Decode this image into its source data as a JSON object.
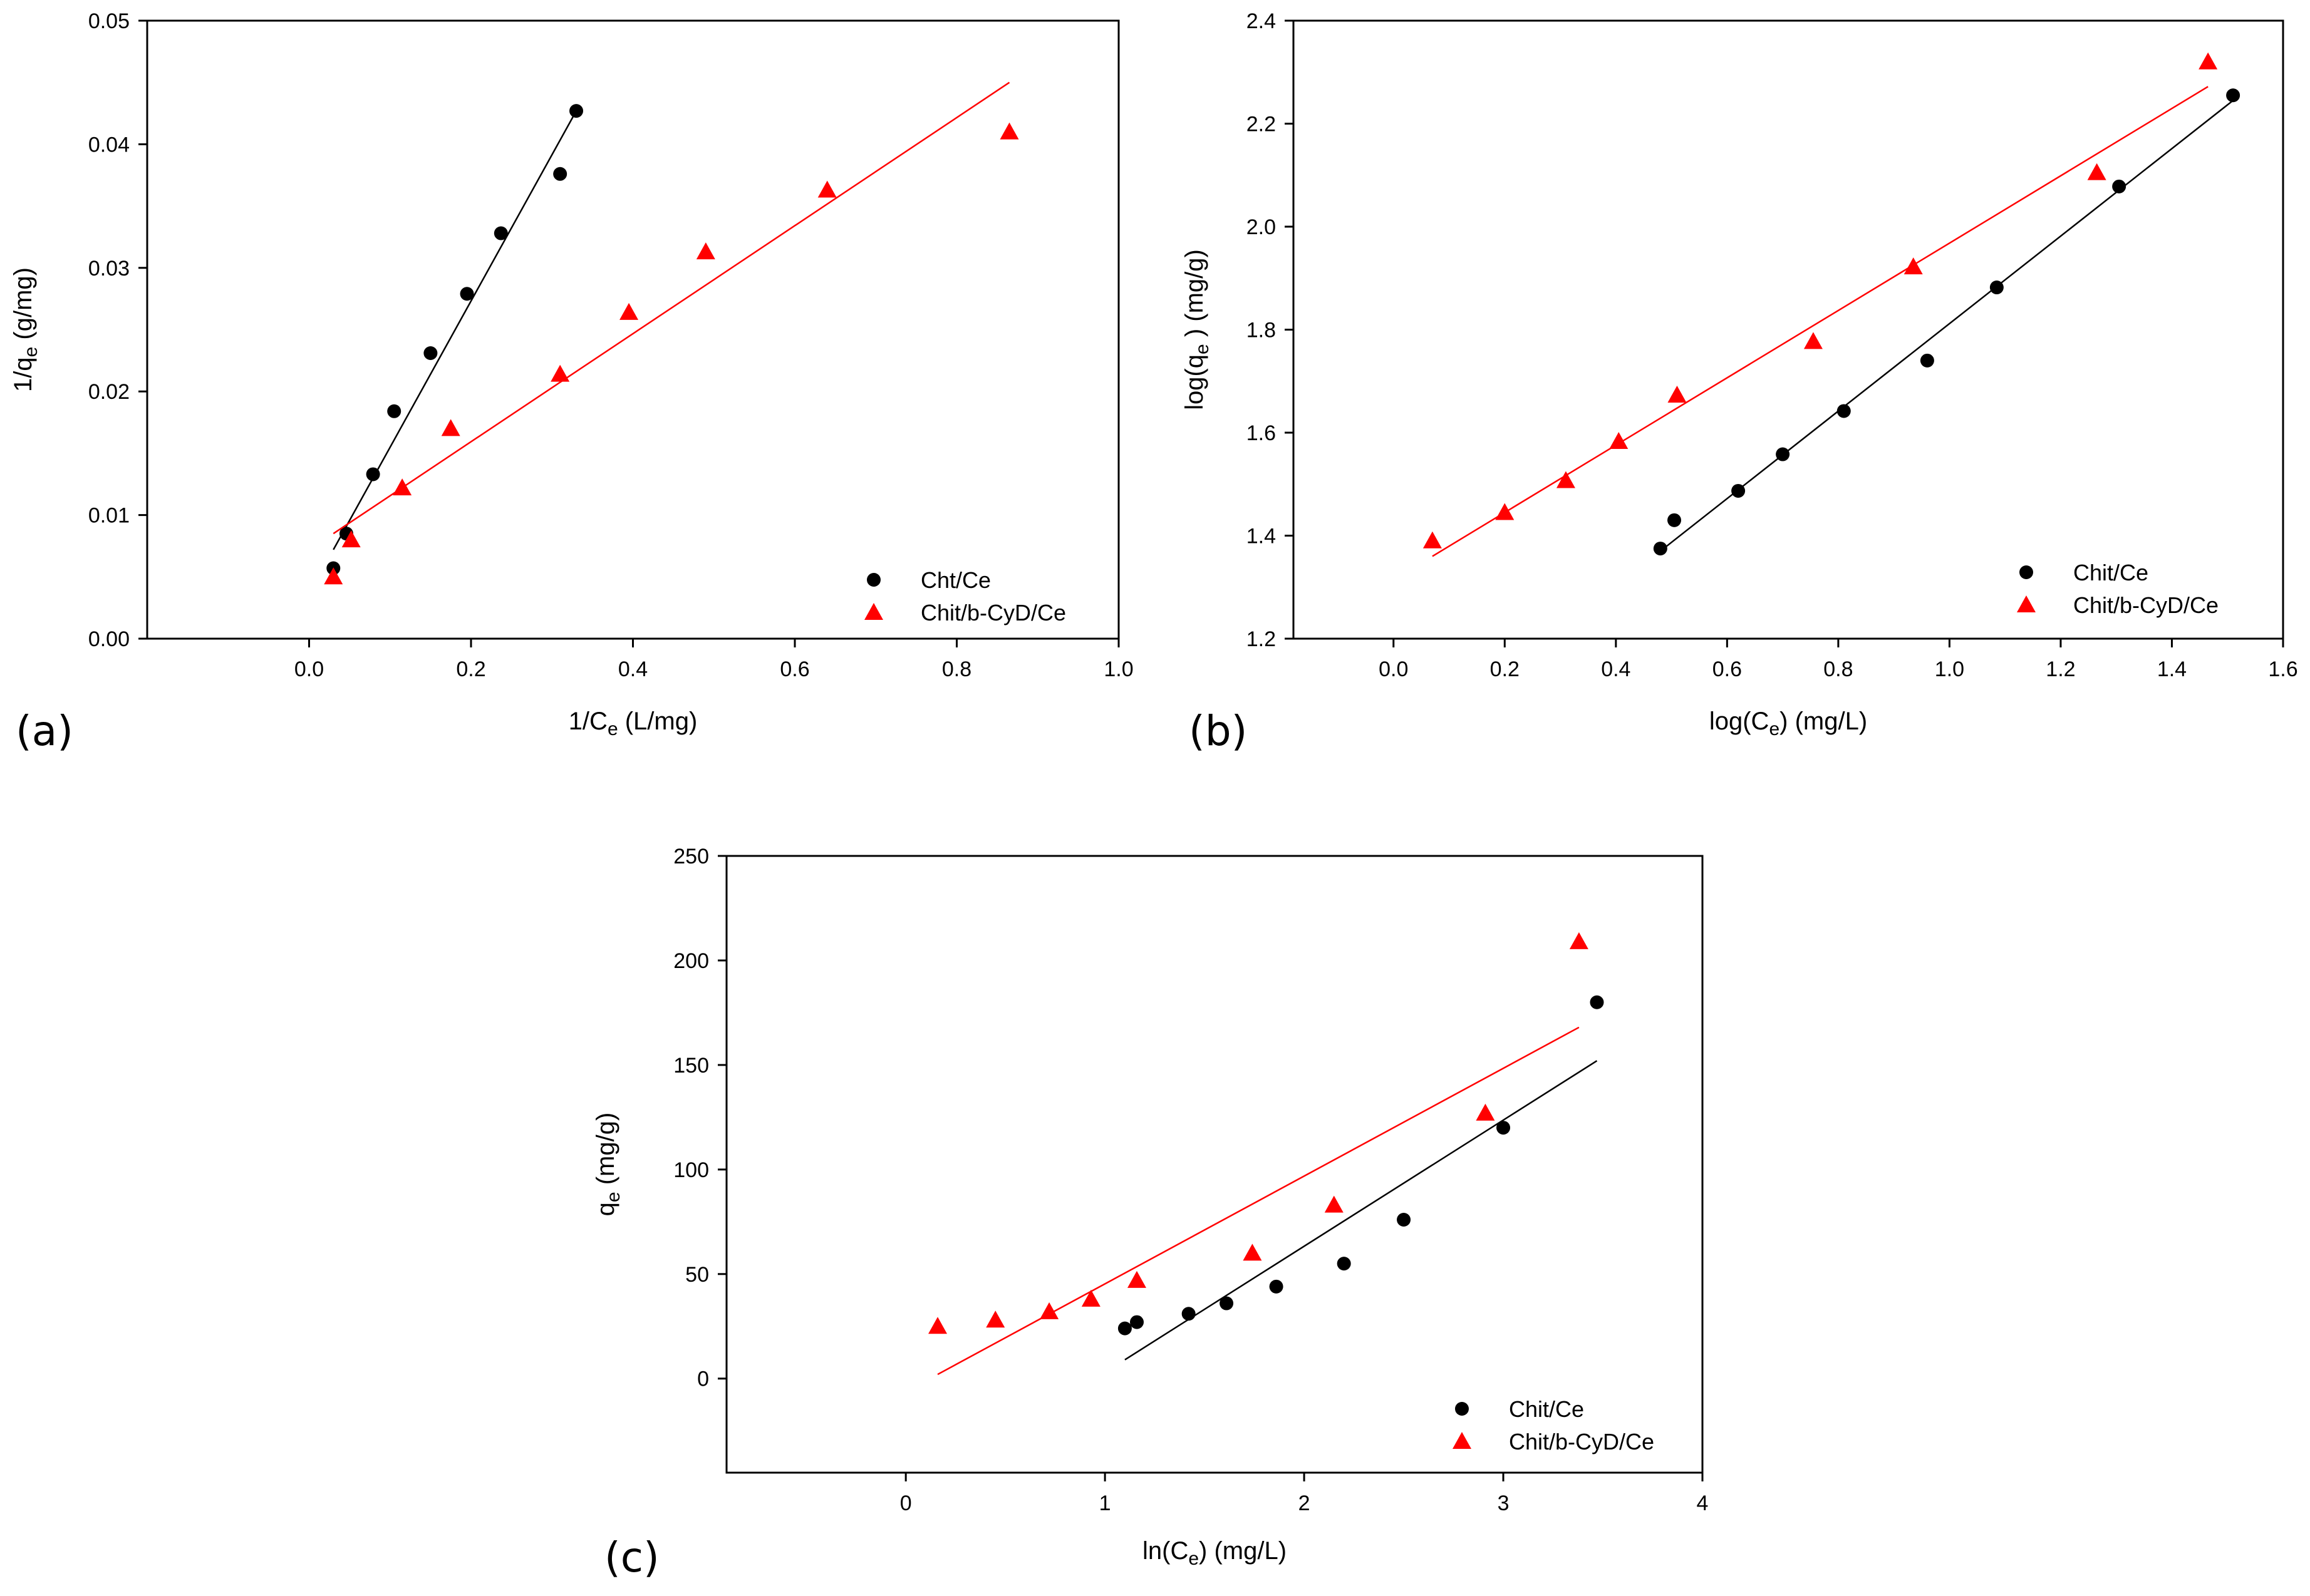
{
  "chart_data": [
    {
      "id": "a",
      "panel_label": "(a)",
      "type": "scatter",
      "xlabel": "1/Ce (L/mg)",
      "xlabel_main": "1/C",
      "xlabel_sub": "e",
      "xlabel_tail": " (L/mg)",
      "ylabel": "1/qe (g/mg)",
      "ylabel_main": "1/q",
      "ylabel_sub": "e",
      "ylabel_tail": " (g/mg)",
      "xlim": [
        -0.2,
        1.0
      ],
      "ylim": [
        0.0,
        0.05
      ],
      "xticks": [
        0.0,
        0.2,
        0.4,
        0.6,
        0.8,
        1.0
      ],
      "yticks": [
        0.0,
        0.01,
        0.02,
        0.03,
        0.04,
        0.05
      ],
      "xtick_labels": [
        "0.0",
        "0.2",
        "0.4",
        "0.6",
        "0.8",
        "1.0"
      ],
      "ytick_labels": [
        "0.00",
        "0.01",
        "0.02",
        "0.03",
        "0.04",
        "0.05"
      ],
      "legend_position": "bottom-right",
      "series": [
        {
          "name": "Cht/Ce",
          "marker": "circle",
          "color": "#000000",
          "x": [
            0.03,
            0.046,
            0.079,
            0.105,
            0.15,
            0.195,
            0.237,
            0.31,
            0.33
          ],
          "y": [
            0.0057,
            0.0085,
            0.0133,
            0.0184,
            0.0231,
            0.0279,
            0.0328,
            0.0376,
            0.0427
          ],
          "fit": {
            "x": [
              0.03,
              0.33
            ],
            "y": [
              0.0072,
              0.0427
            ]
          }
        },
        {
          "name": "Chit/b-CyD/Ce",
          "marker": "triangle",
          "color": "#ff0000",
          "x": [
            0.03,
            0.052,
            0.115,
            0.175,
            0.31,
            0.395,
            0.49,
            0.64,
            0.865
          ],
          "y": [
            0.005,
            0.008,
            0.0122,
            0.017,
            0.0214,
            0.0264,
            0.0313,
            0.0363,
            0.041
          ],
          "fit": {
            "x": [
              0.03,
              0.865
            ],
            "y": [
              0.0085,
              0.045
            ]
          }
        }
      ]
    },
    {
      "id": "b",
      "panel_label": "(b)",
      "type": "scatter",
      "xlabel": "log(Ce) (mg/L)",
      "xlabel_main": "log(C",
      "xlabel_sub": "e",
      "xlabel_tail": ") (mg/L)",
      "ylabel": "log(qe ) (mg/g)",
      "ylabel_main": "log(q",
      "ylabel_sub": "e",
      "ylabel_tail": " ) (mg/g)",
      "xlim": [
        -0.18,
        1.6
      ],
      "ylim": [
        1.2,
        2.4
      ],
      "xticks": [
        0.0,
        0.2,
        0.4,
        0.6,
        0.8,
        1.0,
        1.2,
        1.4,
        1.6
      ],
      "yticks": [
        1.2,
        1.4,
        1.6,
        1.8,
        2.0,
        2.2,
        2.4
      ],
      "xtick_labels": [
        "0.0",
        "0.2",
        "0.4",
        "0.6",
        "0.8",
        "1.0",
        "1.2",
        "1.4",
        "1.6"
      ],
      "ytick_labels": [
        "1.2",
        "1.4",
        "1.6",
        "1.8",
        "2.0",
        "2.2",
        "2.4"
      ],
      "legend_position": "bottom-right",
      "series": [
        {
          "name": "Chit/Ce",
          "marker": "circle",
          "color": "#000000",
          "x": [
            0.48,
            0.505,
            0.62,
            0.7,
            0.81,
            0.96,
            1.085,
            1.305,
            1.51
          ],
          "y": [
            1.375,
            1.43,
            1.487,
            1.558,
            1.642,
            1.74,
            1.882,
            2.078,
            2.255
          ],
          "fit": {
            "x": [
              0.48,
              1.51
            ],
            "y": [
              1.37,
              2.245
            ]
          }
        },
        {
          "name": "Chit/b-CyD/Ce",
          "marker": "triangle",
          "color": "#ff0000",
          "x": [
            0.07,
            0.2,
            0.31,
            0.405,
            0.51,
            0.755,
            0.935,
            1.265,
            1.465
          ],
          "y": [
            1.39,
            1.445,
            1.507,
            1.583,
            1.673,
            1.777,
            1.922,
            2.105,
            2.32
          ],
          "fit": {
            "x": [
              0.07,
              1.465
            ],
            "y": [
              1.36,
              2.272
            ]
          }
        }
      ]
    },
    {
      "id": "c",
      "panel_label": "(c)",
      "type": "scatter",
      "xlabel": "ln(Ce) (mg/L)",
      "xlabel_main": "ln(C",
      "xlabel_sub": "e",
      "xlabel_tail": ") (mg/L)",
      "ylabel": "qe (mg/g)",
      "ylabel_main": "q",
      "ylabel_sub": "e",
      "ylabel_tail": " (mg/g)",
      "xlim": [
        -0.9,
        4.0
      ],
      "ylim": [
        -45,
        250
      ],
      "xticks": [
        0,
        1,
        2,
        3,
        4
      ],
      "yticks": [
        0,
        50,
        100,
        150,
        200,
        250
      ],
      "xtick_labels": [
        "0",
        "1",
        "2",
        "3",
        "4"
      ],
      "ytick_labels": [
        "0",
        "50",
        "100",
        "150",
        "200",
        "250"
      ],
      "legend_position": "bottom-right",
      "series": [
        {
          "name": "Chit/Ce",
          "marker": "circle",
          "color": "#000000",
          "x": [
            1.1,
            1.16,
            1.42,
            1.61,
            1.86,
            2.2,
            2.5,
            3.0,
            3.47
          ],
          "y": [
            24,
            27,
            31,
            36,
            44,
            55,
            76,
            120,
            180
          ],
          "fit": {
            "x": [
              1.1,
              3.47
            ],
            "y": [
              9,
              152
            ]
          }
        },
        {
          "name": "Chit/b-CyD/Ce",
          "marker": "triangle",
          "color": "#ff0000",
          "x": [
            0.16,
            0.45,
            0.72,
            0.93,
            1.16,
            1.74,
            2.15,
            2.91,
            3.38
          ],
          "y": [
            25,
            28,
            32,
            38,
            47,
            60,
            83,
            127,
            209
          ],
          "fit": {
            "x": [
              0.16,
              3.38
            ],
            "y": [
              2,
              168
            ]
          }
        }
      ]
    }
  ]
}
